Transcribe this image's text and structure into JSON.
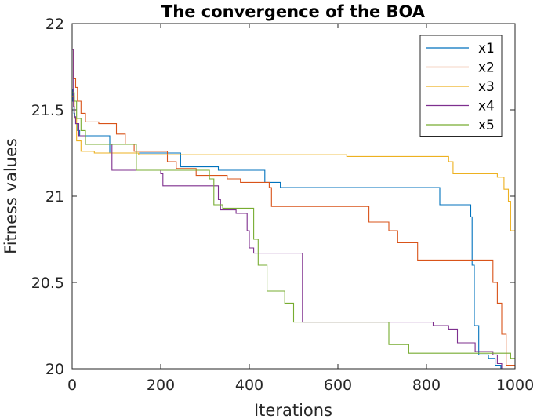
{
  "chart_data": {
    "type": "line",
    "title": "The convergence of the BOA",
    "xlabel": "Iterations",
    "ylabel": "Fitness values",
    "xlim": [
      0,
      1000
    ],
    "ylim": [
      20,
      22
    ],
    "xticks": [
      0,
      200,
      400,
      600,
      800,
      1000
    ],
    "xtick_labels": [
      "0",
      "200",
      "400",
      "600",
      "800",
      "1000"
    ],
    "yticks": [
      20,
      20.5,
      21,
      21.5,
      22
    ],
    "ytick_labels": [
      "20",
      "20.5",
      "21",
      "21.5",
      "22"
    ],
    "legend_position": "top-right",
    "series": [
      {
        "name": "x1",
        "color": "#0072BD",
        "x": [
          0,
          2,
          4,
          6,
          8,
          12,
          17,
          30,
          85,
          140,
          240,
          245,
          330,
          435,
          445,
          470,
          830,
          900,
          903,
          908,
          918,
          940,
          955,
          968,
          1000
        ],
        "y": [
          21.62,
          21.55,
          21.48,
          21.45,
          21.42,
          21.38,
          21.35,
          21.35,
          21.25,
          21.25,
          21.25,
          21.17,
          21.15,
          21.08,
          21.08,
          21.05,
          20.95,
          20.88,
          20.6,
          20.25,
          20.08,
          20.06,
          20.02,
          20.0,
          20.0
        ]
      },
      {
        "name": "x2",
        "color": "#D95319",
        "x": [
          0,
          3,
          8,
          12,
          20,
          30,
          60,
          100,
          120,
          140,
          215,
          235,
          280,
          350,
          380,
          445,
          450,
          670,
          715,
          735,
          780,
          850,
          935,
          950,
          960,
          970,
          980,
          1000
        ],
        "y": [
          21.85,
          21.68,
          21.63,
          21.55,
          21.48,
          21.43,
          21.42,
          21.36,
          21.3,
          21.26,
          21.2,
          21.16,
          21.12,
          21.1,
          21.08,
          21.05,
          20.94,
          20.85,
          20.8,
          20.73,
          20.63,
          20.63,
          20.63,
          20.5,
          20.38,
          20.2,
          20.02,
          20.0
        ]
      },
      {
        "name": "x3",
        "color": "#EDB120",
        "x": [
          0,
          5,
          10,
          20,
          50,
          150,
          300,
          400,
          600,
          620,
          650,
          700,
          850,
          860,
          870,
          960,
          975,
          985,
          990,
          1000
        ],
        "y": [
          21.58,
          21.45,
          21.32,
          21.26,
          21.25,
          21.24,
          21.24,
          21.24,
          21.24,
          21.23,
          21.23,
          21.23,
          21.2,
          21.13,
          21.13,
          21.11,
          21.04,
          20.97,
          20.8,
          20.8
        ]
      },
      {
        "name": "x4",
        "color": "#7E2F8E",
        "x": [
          0,
          3,
          5,
          8,
          15,
          30,
          90,
          200,
          205,
          330,
          335,
          350,
          370,
          395,
          400,
          410,
          510,
          520,
          815,
          850,
          870,
          910,
          950,
          960,
          970,
          1000
        ],
        "y": [
          21.85,
          21.52,
          21.46,
          21.42,
          21.35,
          21.3,
          21.15,
          21.13,
          21.06,
          20.98,
          20.92,
          20.92,
          20.9,
          20.8,
          20.7,
          20.67,
          20.67,
          20.27,
          20.25,
          20.23,
          20.15,
          20.1,
          20.08,
          20.03,
          20.0,
          20.0
        ]
      },
      {
        "name": "x5",
        "color": "#77AC30",
        "x": [
          0,
          5,
          10,
          20,
          30,
          80,
          140,
          145,
          310,
          320,
          340,
          400,
          410,
          420,
          440,
          480,
          500,
          600,
          710,
          715,
          760,
          990,
          1000
        ],
        "y": [
          21.6,
          21.55,
          21.45,
          21.38,
          21.3,
          21.3,
          21.3,
          21.15,
          21.1,
          20.95,
          20.93,
          20.93,
          20.75,
          20.6,
          20.45,
          20.38,
          20.27,
          20.27,
          20.27,
          20.14,
          20.09,
          20.06,
          20.06
        ]
      }
    ]
  }
}
